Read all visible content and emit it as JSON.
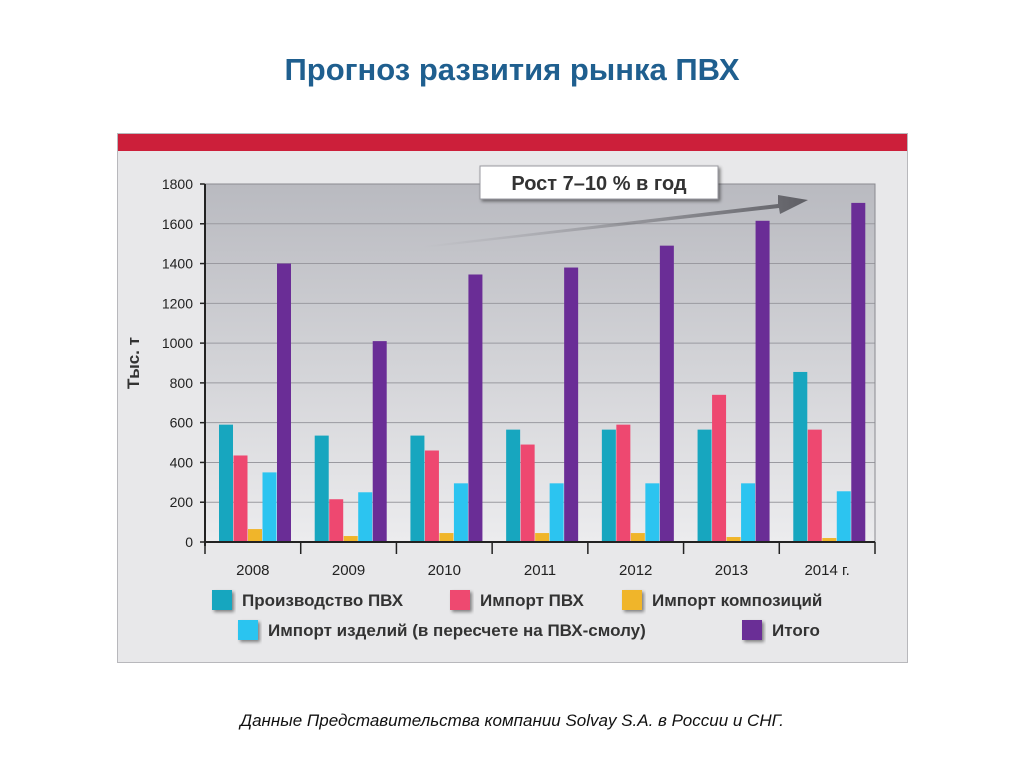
{
  "title": "Прогноз развития рынка ПВХ",
  "source_note": "Данные Представительства компании Solvay S.A. в России и СНГ.",
  "chart_data": {
    "type": "bar",
    "ylabel": "Тыс. т",
    "ylim": [
      0,
      1800
    ],
    "yticks": [
      0,
      200,
      400,
      600,
      800,
      1000,
      1200,
      1400,
      1600,
      1800
    ],
    "categories": [
      "2008",
      "2009",
      "2010",
      "2011",
      "2012",
      "2013",
      "2014 г."
    ],
    "annotation": "Рост 7–10 % в год",
    "grid": true,
    "legend_position": "bottom",
    "series": [
      {
        "name": "Производство ПВХ",
        "color": "#17a6bf",
        "values": [
          590,
          535,
          535,
          565,
          565,
          565,
          855
        ]
      },
      {
        "name": "Импорт ПВХ",
        "color": "#ee4870",
        "values": [
          435,
          215,
          460,
          490,
          590,
          740,
          565
        ]
      },
      {
        "name": "Импорт композиций",
        "color": "#f0b52a",
        "values": [
          65,
          30,
          45,
          45,
          45,
          25,
          20
        ]
      },
      {
        "name": "Импорт изделий (в пересчете на ПВХ-смолу)",
        "color": "#2cc4f0",
        "values": [
          350,
          250,
          295,
          295,
          295,
          295,
          255
        ]
      },
      {
        "name": "Итого",
        "color": "#6a2d96",
        "values": [
          1400,
          1010,
          1345,
          1380,
          1490,
          1615,
          1705
        ]
      }
    ]
  }
}
